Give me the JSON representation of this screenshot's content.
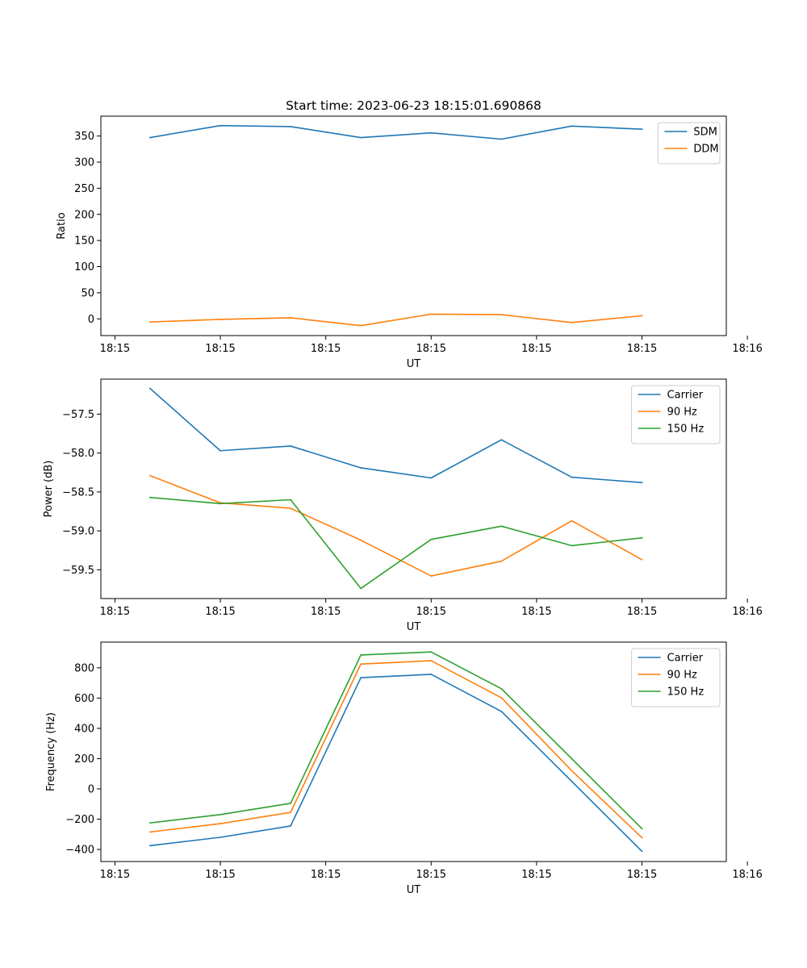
{
  "figure": {
    "title": "Start time: 2023-06-23 18:15:01.690868"
  },
  "colors": {
    "blue": "#1f77b4",
    "orange": "#ff7f0e",
    "green": "#2ca02c"
  },
  "chart_data": [
    {
      "type": "line",
      "title": "Start time: 2023-06-23 18:15:01.690868",
      "xlabel": "UT",
      "ylabel": "Ratio",
      "x": [
        1,
        2,
        3,
        4,
        5,
        6,
        7,
        8
      ],
      "xlim": [
        0.3,
        9.2
      ],
      "xticks": [
        {
          "value": 0.5,
          "label": "18:15"
        },
        {
          "value": 2.0,
          "label": "18:15"
        },
        {
          "value": 3.5,
          "label": "18:15"
        },
        {
          "value": 5.0,
          "label": "18:15"
        },
        {
          "value": 6.5,
          "label": "18:15"
        },
        {
          "value": 8.0,
          "label": "18:15"
        },
        {
          "value": 9.5,
          "label": "18:16"
        }
      ],
      "ylim": [
        -32,
        388
      ],
      "yticks": [
        0,
        50,
        100,
        150,
        200,
        250,
        300,
        350
      ],
      "legend": "top-right",
      "series": [
        {
          "name": "SDM",
          "color": "#1f77b4",
          "values": [
            347,
            370,
            368,
            347,
            356,
            344,
            369,
            363
          ]
        },
        {
          "name": "DDM",
          "color": "#ff7f0e",
          "values": [
            -6,
            -1,
            2,
            -13,
            9,
            8,
            -7,
            6
          ]
        }
      ]
    },
    {
      "type": "line",
      "xlabel": "UT",
      "ylabel": "Power (dB)",
      "x": [
        1,
        2,
        3,
        4,
        5,
        6,
        7,
        8
      ],
      "xlim": [
        0.3,
        9.2
      ],
      "xticks": [
        {
          "value": 0.5,
          "label": "18:15"
        },
        {
          "value": 2.0,
          "label": "18:15"
        },
        {
          "value": 3.5,
          "label": "18:15"
        },
        {
          "value": 5.0,
          "label": "18:15"
        },
        {
          "value": 6.5,
          "label": "18:15"
        },
        {
          "value": 8.0,
          "label": "18:15"
        },
        {
          "value": 9.5,
          "label": "18:16"
        }
      ],
      "ylim": [
        -59.87,
        -57.05
      ],
      "yticks": [
        -59.5,
        -59.0,
        -58.5,
        -58.0,
        -57.5
      ],
      "ytick_labels": [
        "−59.5",
        "−59.0",
        "−58.5",
        "−58.0",
        "−57.5"
      ],
      "legend": "top-right",
      "series": [
        {
          "name": "Carrier",
          "color": "#1f77b4",
          "values": [
            -57.17,
            -57.97,
            -57.91,
            -58.19,
            -58.32,
            -57.83,
            -58.31,
            -58.38
          ]
        },
        {
          "name": "90 Hz",
          "color": "#ff7f0e",
          "values": [
            -58.29,
            -58.64,
            -58.71,
            -59.12,
            -59.58,
            -59.39,
            -58.87,
            -59.37
          ]
        },
        {
          "name": "150 Hz",
          "color": "#2ca02c",
          "values": [
            -58.57,
            -58.65,
            -58.6,
            -59.74,
            -59.11,
            -58.94,
            -59.19,
            -59.09
          ]
        }
      ]
    },
    {
      "type": "line",
      "xlabel": "UT",
      "ylabel": "Frequency (Hz)",
      "x": [
        1,
        2,
        3,
        4,
        5,
        6,
        7,
        8
      ],
      "xlim": [
        0.3,
        9.2
      ],
      "xticks": [
        {
          "value": 0.5,
          "label": "18:15"
        },
        {
          "value": 2.0,
          "label": "18:15"
        },
        {
          "value": 3.5,
          "label": "18:15"
        },
        {
          "value": 5.0,
          "label": "18:15"
        },
        {
          "value": 6.5,
          "label": "18:15"
        },
        {
          "value": 8.0,
          "label": "18:15"
        },
        {
          "value": 9.5,
          "label": "18:16"
        }
      ],
      "ylim": [
        -480,
        970
      ],
      "yticks": [
        -400,
        -200,
        0,
        200,
        400,
        600,
        800
      ],
      "ytick_labels": [
        "−400",
        "−200",
        "0",
        "200",
        "400",
        "600",
        "800"
      ],
      "legend": "top-right",
      "series": [
        {
          "name": "Carrier",
          "color": "#1f77b4",
          "values": [
            -375,
            -320,
            -245,
            735,
            757,
            512,
            50,
            -413
          ]
        },
        {
          "name": "90 Hz",
          "color": "#ff7f0e",
          "values": [
            -285,
            -230,
            -155,
            825,
            847,
            602,
            120,
            -323
          ]
        },
        {
          "name": "150 Hz",
          "color": "#2ca02c",
          "values": [
            -225,
            -170,
            -95,
            885,
            905,
            662,
            200,
            -263
          ]
        }
      ]
    }
  ]
}
